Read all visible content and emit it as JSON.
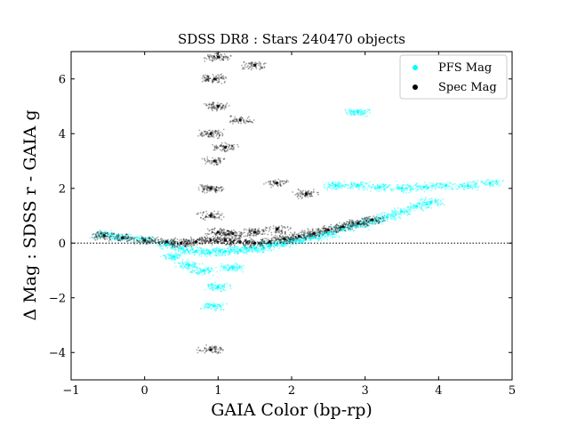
{
  "chart_data": {
    "type": "scatter",
    "title": "SDSS DR8 : Stars 240470 objects",
    "xlabel": "GAIA Color (bp-rp)",
    "ylabel": "Δ Mag : SDSS r - GAIA g",
    "xlim": [
      -1,
      5
    ],
    "ylim": [
      -5,
      7
    ],
    "xticks": [
      -1,
      0,
      1,
      2,
      3,
      4,
      5
    ],
    "yticks": [
      -4,
      -2,
      0,
      2,
      4,
      6
    ],
    "reference_line": {
      "y": 0,
      "style": "dotted"
    },
    "legend_position": "top-right",
    "series": [
      {
        "name": "PFS Mag",
        "color": "#00ffff",
        "marker": "dot",
        "points": [
          [
            -0.55,
            0.3
          ],
          [
            -0.3,
            0.22
          ],
          [
            0.0,
            0.12
          ],
          [
            0.3,
            -0.05
          ],
          [
            0.5,
            -0.2
          ],
          [
            0.7,
            -0.3
          ],
          [
            0.9,
            -0.35
          ],
          [
            1.1,
            -0.3
          ],
          [
            1.3,
            -0.25
          ],
          [
            1.5,
            -0.2
          ],
          [
            1.7,
            -0.1
          ],
          [
            1.9,
            0.0
          ],
          [
            2.1,
            0.1
          ],
          [
            2.3,
            0.22
          ],
          [
            2.5,
            0.35
          ],
          [
            2.7,
            0.5
          ],
          [
            2.9,
            0.65
          ],
          [
            3.1,
            0.8
          ],
          [
            3.3,
            0.95
          ],
          [
            3.5,
            1.15
          ],
          [
            3.7,
            1.35
          ],
          [
            3.9,
            1.5
          ],
          [
            2.6,
            2.1
          ],
          [
            2.9,
            2.1
          ],
          [
            3.2,
            2.05
          ],
          [
            3.5,
            2.0
          ],
          [
            3.8,
            2.05
          ],
          [
            4.1,
            2.1
          ],
          [
            4.4,
            2.1
          ],
          [
            4.7,
            2.2
          ],
          [
            0.8,
            -1.0
          ],
          [
            1.0,
            -1.6
          ],
          [
            0.95,
            -2.3
          ],
          [
            0.6,
            -0.8
          ],
          [
            1.2,
            -0.9
          ],
          [
            2.9,
            4.8
          ],
          [
            0.4,
            -0.5
          ]
        ]
      },
      {
        "name": "Spec Mag",
        "color": "#000000",
        "marker": "dot",
        "points": [
          [
            -0.55,
            0.28
          ],
          [
            -0.3,
            0.2
          ],
          [
            0.0,
            0.1
          ],
          [
            0.3,
            0.05
          ],
          [
            0.5,
            0.0
          ],
          [
            0.7,
            0.05
          ],
          [
            0.9,
            0.1
          ],
          [
            1.1,
            0.1
          ],
          [
            1.3,
            0.05
          ],
          [
            1.5,
            0.0
          ],
          [
            1.7,
            0.05
          ],
          [
            1.9,
            0.15
          ],
          [
            2.1,
            0.25
          ],
          [
            2.3,
            0.35
          ],
          [
            2.5,
            0.48
          ],
          [
            2.7,
            0.6
          ],
          [
            2.9,
            0.72
          ],
          [
            3.1,
            0.85
          ],
          [
            1.0,
            0.4
          ],
          [
            1.2,
            0.35
          ],
          [
            1.5,
            0.4
          ],
          [
            1.8,
            0.5
          ],
          [
            0.9,
            1.0
          ],
          [
            0.9,
            2.0
          ],
          [
            0.95,
            3.0
          ],
          [
            0.9,
            4.0
          ],
          [
            1.0,
            5.0
          ],
          [
            0.95,
            6.0
          ],
          [
            1.0,
            6.8
          ],
          [
            1.3,
            4.5
          ],
          [
            1.1,
            3.5
          ],
          [
            1.5,
            6.5
          ],
          [
            0.9,
            -3.9
          ],
          [
            1.8,
            2.2
          ],
          [
            2.2,
            1.8
          ]
        ]
      }
    ]
  }
}
